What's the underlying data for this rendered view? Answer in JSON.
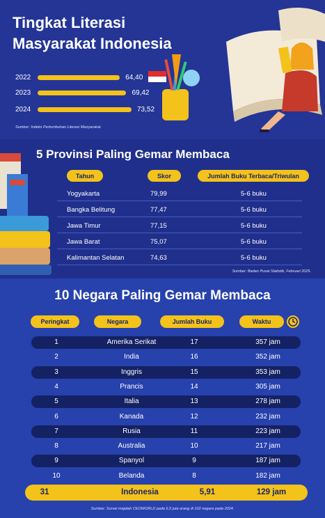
{
  "literacy": {
    "title_line1": "Tingkat Literasi",
    "title_line2": "Masyarakat Indonesia",
    "source": "Sumber: Indeks Pertumbuhan Literasi Masyarakat.",
    "accent_color": "#f3c21b"
  },
  "chart_data": {
    "type": "bar",
    "categories": [
      "2022",
      "2023",
      "2024"
    ],
    "values": [
      64.4,
      69.42,
      73.52
    ],
    "value_labels": [
      "64,40",
      "69,42",
      "73,52"
    ]
  },
  "provinces": {
    "title": "5 Provinsi Paling Gemar Membaca",
    "headers": [
      "Tahun",
      "Skor",
      "Jumlah Buku Terbaca/Triwulan"
    ],
    "rows": [
      {
        "name": "Yogyakarta",
        "score": "79,99",
        "books": "5-6 buku"
      },
      {
        "name": "Bangka Belitung",
        "score": "77,47",
        "books": "5-6 buku"
      },
      {
        "name": "Jawa Timur",
        "score": "77,15",
        "books": "5-6 buku"
      },
      {
        "name": "Jawa Barat",
        "score": "75,07",
        "books": "5-6 buku"
      },
      {
        "name": "Kalimantan Selatan",
        "score": "74,63",
        "books": "5-6 buku"
      }
    ],
    "source": "Sumber: Badan Pusat Statistik, Februari 2025."
  },
  "countries": {
    "title": "10 Negara Paling Gemar Membaca",
    "headers": [
      "Peringkat",
      "Negara",
      "Jumlah Buku",
      "Waktu"
    ],
    "rows": [
      {
        "rank": "1",
        "country": "Amerika Serikat",
        "books": "17",
        "time": "357 jam"
      },
      {
        "rank": "2",
        "country": "India",
        "books": "16",
        "time": "352 jam"
      },
      {
        "rank": "3",
        "country": "Inggris",
        "books": "15",
        "time": "353 jam"
      },
      {
        "rank": "4",
        "country": "Prancis",
        "books": "14",
        "time": "305 jam"
      },
      {
        "rank": "5",
        "country": "Italia",
        "books": "13",
        "time": "278 jam"
      },
      {
        "rank": "6",
        "country": "Kanada",
        "books": "12",
        "time": "232 jam"
      },
      {
        "rank": "7",
        "country": "Rusia",
        "books": "11",
        "time": "223 jam"
      },
      {
        "rank": "8",
        "country": "Australia",
        "books": "10",
        "time": "217 jam"
      },
      {
        "rank": "9",
        "country": "Spanyol",
        "books": "9",
        "time": "187 jam"
      },
      {
        "rank": "10",
        "country": "Belanda",
        "books": "8",
        "time": "182 jam"
      }
    ],
    "indonesia": {
      "rank": "31",
      "country": "Indonesia",
      "books": "5,91",
      "time": "129 jam"
    },
    "source": "Sumber: Survei majalah CEOWORLD pada 6,5 juta orang di 102 negara pada 2024."
  }
}
